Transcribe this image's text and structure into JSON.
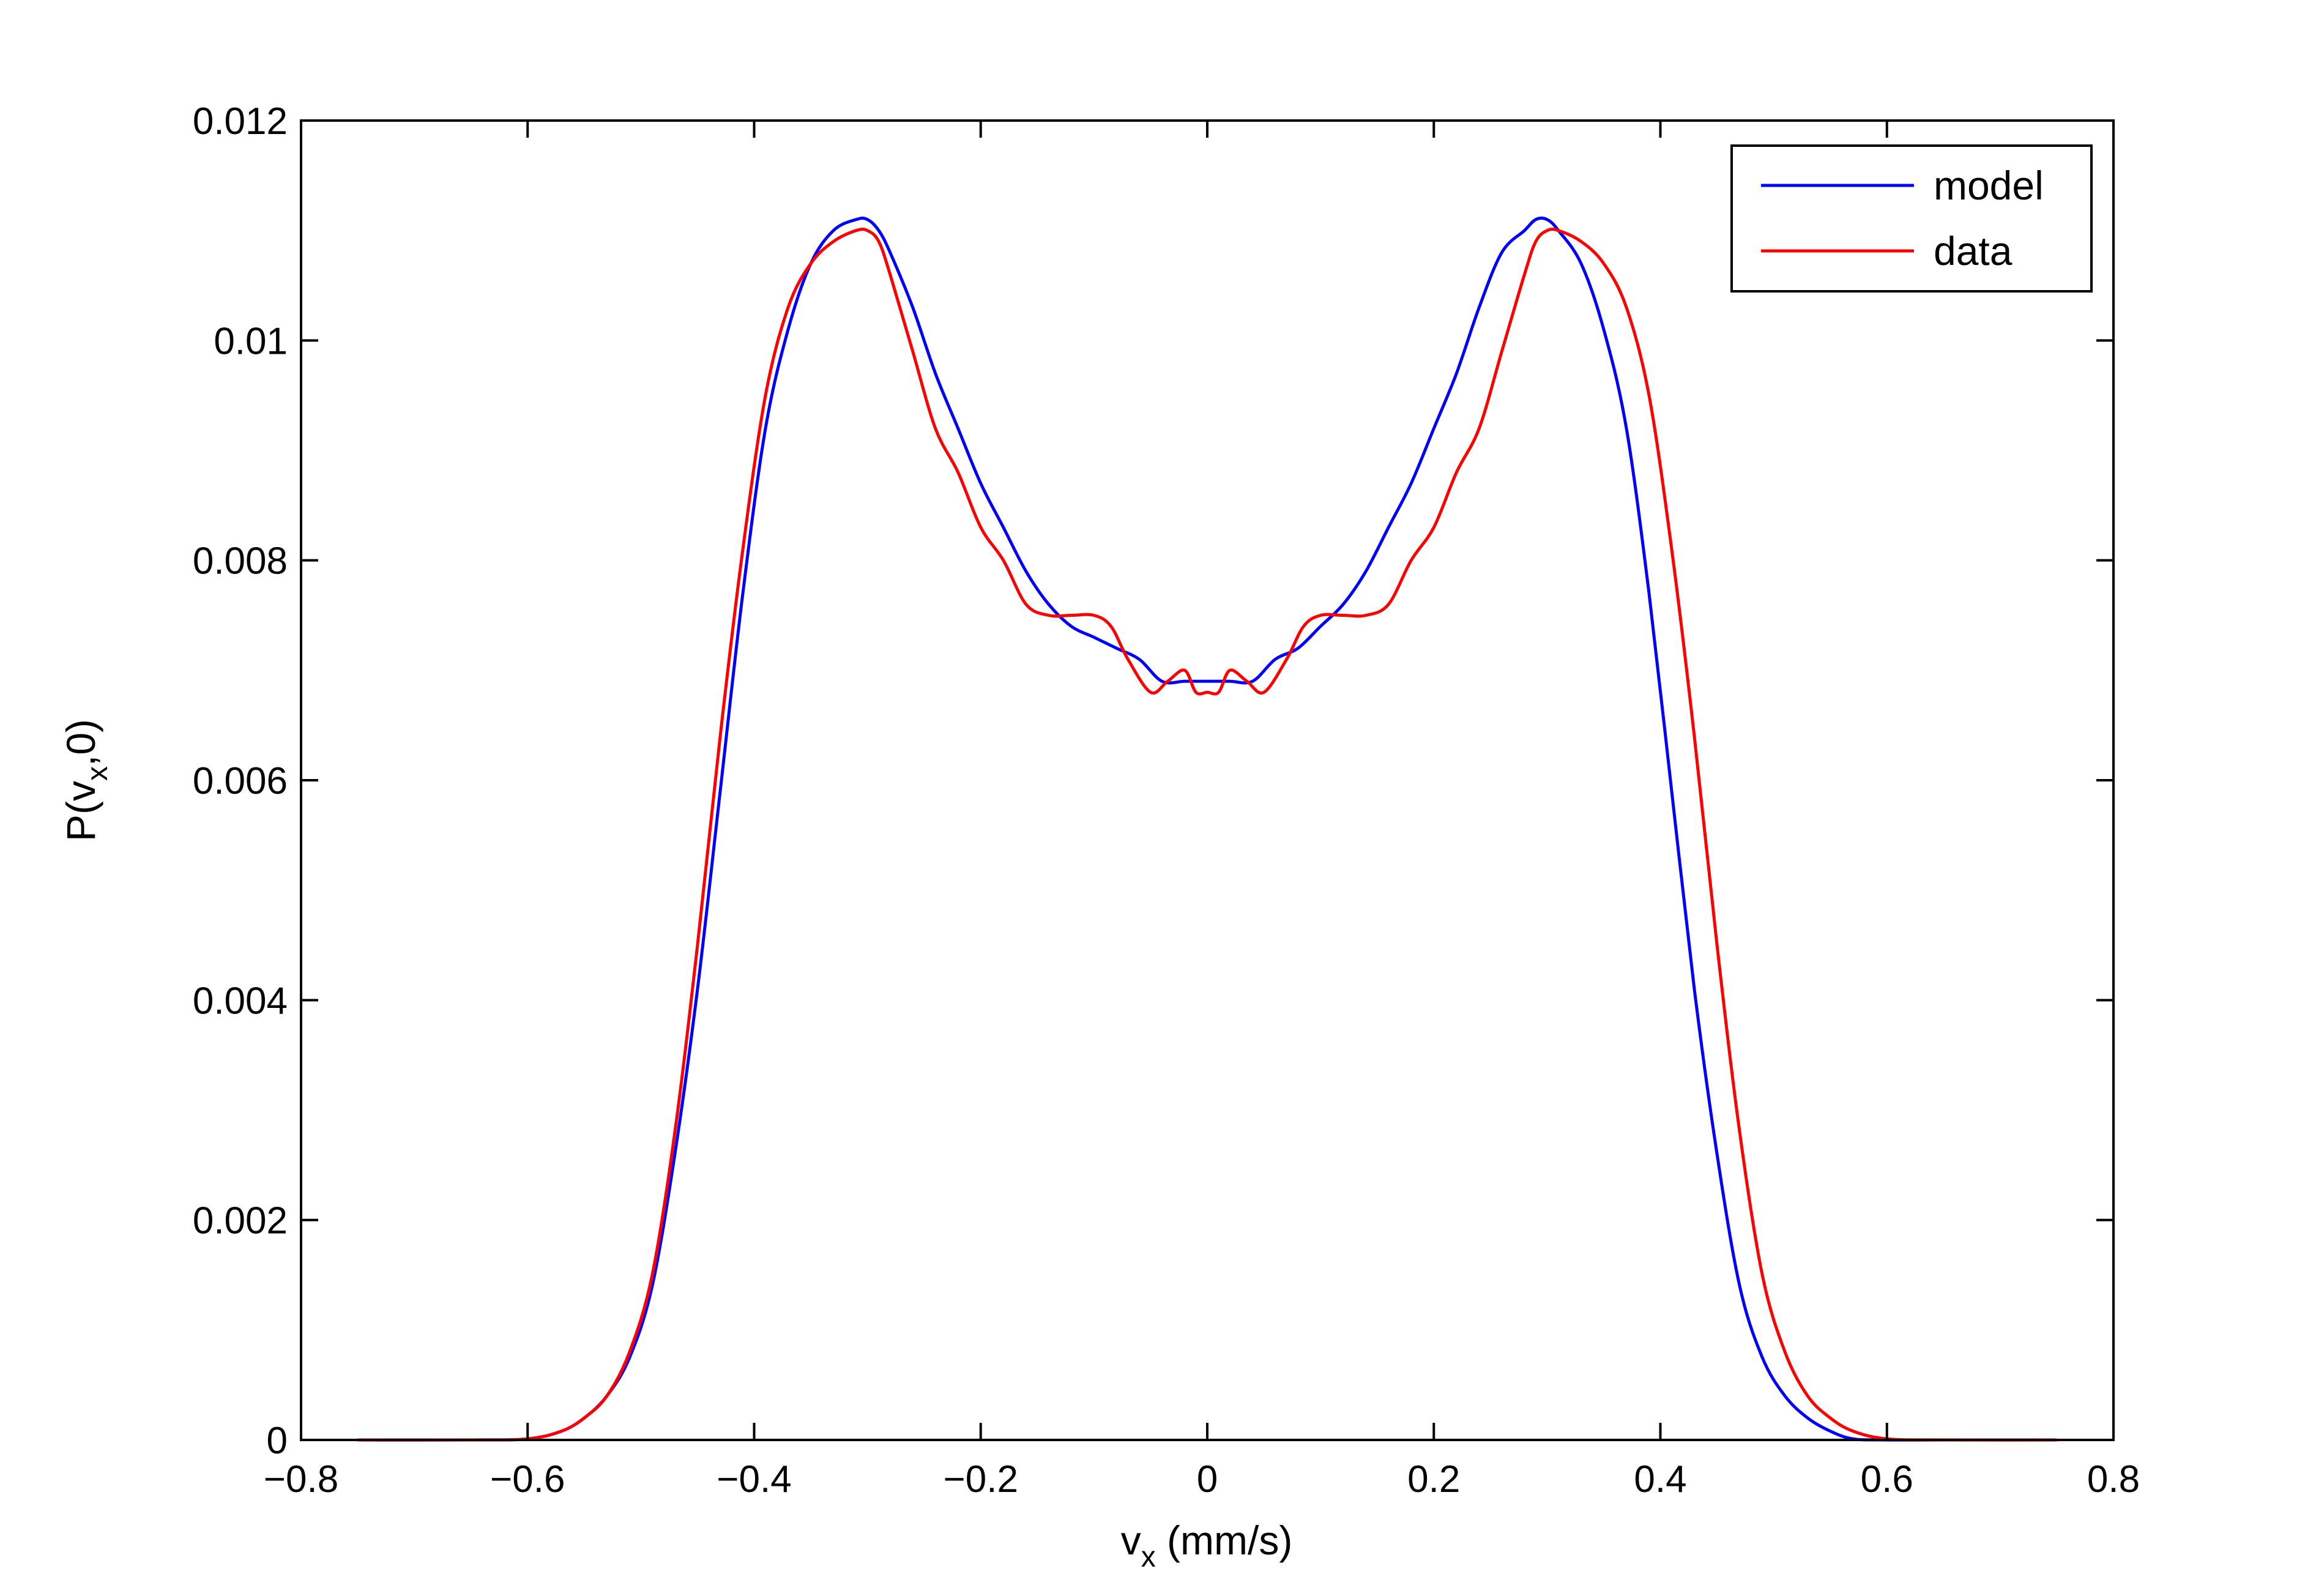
{
  "chart_data": {
    "type": "line",
    "xlabel_main": "v",
    "xlabel_sub": "x",
    "xlabel_rest": " (mm/s)",
    "ylabel_pre": "P(v",
    "ylabel_sub": "x",
    "ylabel_post": ",0)",
    "xlim": [
      -0.8,
      0.8
    ],
    "ylim": [
      0,
      0.012
    ],
    "xticks": [
      -0.8,
      -0.6,
      -0.4,
      -0.2,
      0,
      0.2,
      0.4,
      0.6,
      0.8
    ],
    "xtick_labels": [
      "−0.8",
      "−0.6",
      "−0.4",
      "−0.2",
      "0",
      "0.2",
      "0.4",
      "0.6",
      "0.8"
    ],
    "yticks": [
      0,
      0.002,
      0.004,
      0.006,
      0.008,
      0.01,
      0.012
    ],
    "ytick_labels": [
      "0",
      "0.002",
      "0.004",
      "0.006",
      "0.008",
      "0.01",
      "0.012"
    ],
    "grid": false,
    "legend_position": "top-right",
    "series": [
      {
        "name": "model",
        "color": "#0000ff",
        "x": [
          -0.75,
          -0.65,
          -0.6,
          -0.57,
          -0.55,
          -0.53,
          -0.51,
          -0.49,
          -0.47,
          -0.45,
          -0.43,
          -0.41,
          -0.39,
          -0.37,
          -0.35,
          -0.33,
          -0.31,
          -0.3,
          -0.29,
          -0.28,
          -0.26,
          -0.24,
          -0.22,
          -0.2,
          -0.18,
          -0.16,
          -0.14,
          -0.12,
          -0.1,
          -0.08,
          -0.06,
          -0.04,
          -0.02,
          0,
          0.02,
          0.04,
          0.06,
          0.08,
          0.1,
          0.12,
          0.14,
          0.16,
          0.18,
          0.2,
          0.22,
          0.24,
          0.26,
          0.28,
          0.29,
          0.3,
          0.31,
          0.33,
          0.35,
          0.37,
          0.39,
          0.41,
          0.43,
          0.45,
          0.47,
          0.49,
          0.51,
          0.53,
          0.55,
          0.57,
          0.6,
          0.65,
          0.75
        ],
        "y": [
          0,
          0,
          1e-05,
          8e-05,
          0.0002,
          0.0004,
          0.00075,
          0.0014,
          0.0026,
          0.0041,
          0.0059,
          0.0077,
          0.0092,
          0.0101,
          0.0107,
          0.011,
          0.0111,
          0.0111,
          0.011,
          0.0108,
          0.0103,
          0.0097,
          0.0092,
          0.0087,
          0.0083,
          0.0079,
          0.0076,
          0.0074,
          0.0073,
          0.0072,
          0.0071,
          0.0069,
          0.0069,
          0.0069,
          0.0069,
          0.0069,
          0.0071,
          0.0072,
          0.0074,
          0.0076,
          0.0079,
          0.0083,
          0.0087,
          0.0092,
          0.0097,
          0.0103,
          0.0108,
          0.011,
          0.0111,
          0.0111,
          0.011,
          0.0107,
          0.0101,
          0.0092,
          0.0077,
          0.0059,
          0.0041,
          0.0026,
          0.0014,
          0.00075,
          0.0004,
          0.0002,
          8e-05,
          1e-05,
          0,
          0,
          0
        ]
      },
      {
        "name": "data",
        "color": "#ff0000",
        "x": [
          -0.75,
          -0.65,
          -0.6,
          -0.57,
          -0.55,
          -0.53,
          -0.51,
          -0.49,
          -0.47,
          -0.45,
          -0.43,
          -0.41,
          -0.39,
          -0.37,
          -0.35,
          -0.33,
          -0.31,
          -0.3,
          -0.29,
          -0.28,
          -0.26,
          -0.24,
          -0.22,
          -0.2,
          -0.18,
          -0.16,
          -0.14,
          -0.12,
          -0.1,
          -0.085,
          -0.07,
          -0.05,
          -0.035,
          -0.02,
          -0.01,
          0,
          0.01,
          0.02,
          0.035,
          0.05,
          0.07,
          0.085,
          0.1,
          0.12,
          0.14,
          0.16,
          0.18,
          0.2,
          0.22,
          0.24,
          0.26,
          0.28,
          0.29,
          0.3,
          0.31,
          0.33,
          0.35,
          0.37,
          0.39,
          0.41,
          0.43,
          0.45,
          0.47,
          0.49,
          0.51,
          0.53,
          0.55,
          0.57,
          0.6,
          0.65,
          0.75
        ],
        "y": [
          0,
          0,
          1e-05,
          8e-05,
          0.0002,
          0.0004,
          0.0008,
          0.0015,
          0.0028,
          0.0045,
          0.0064,
          0.0081,
          0.0095,
          0.0103,
          0.0107,
          0.0109,
          0.011,
          0.011,
          0.0109,
          0.0106,
          0.0099,
          0.0092,
          0.0088,
          0.0083,
          0.008,
          0.0076,
          0.0075,
          0.0075,
          0.0075,
          0.0074,
          0.0071,
          0.0068,
          0.0069,
          0.007,
          0.0068,
          0.0068,
          0.0068,
          0.007,
          0.0069,
          0.0068,
          0.0071,
          0.0074,
          0.0075,
          0.0075,
          0.0075,
          0.0076,
          0.008,
          0.0083,
          0.0088,
          0.0092,
          0.0099,
          0.0106,
          0.0109,
          0.011,
          0.011,
          0.0109,
          0.0107,
          0.0103,
          0.0095,
          0.0081,
          0.0064,
          0.0045,
          0.0028,
          0.0015,
          0.0008,
          0.0004,
          0.0002,
          8e-05,
          1e-05,
          0,
          0
        ]
      }
    ]
  }
}
